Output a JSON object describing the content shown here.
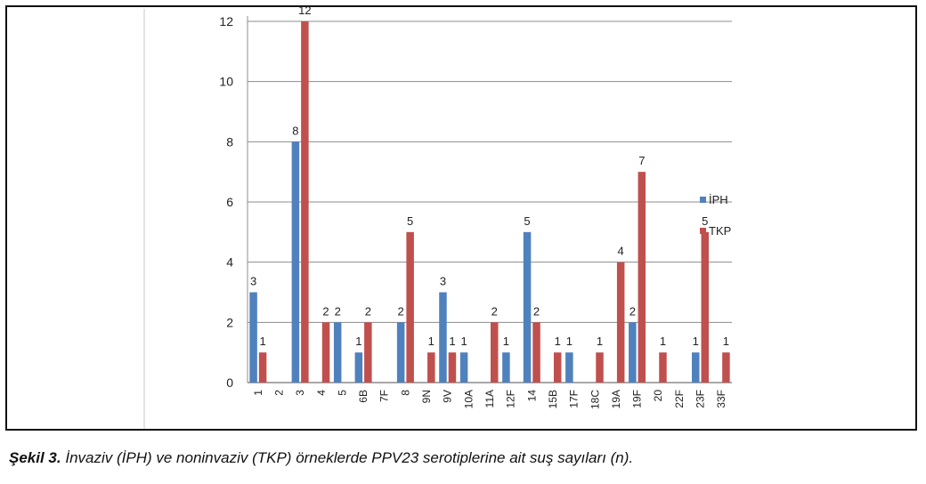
{
  "figure_label": "Şekil 3.",
  "caption_text": "İnvaziv (İPH) ve noninvaziv (TKP) örneklerde PPV23 serotiplerine ait suş sayıları (n).",
  "colors": {
    "iph": "#4f81bd",
    "tkp": "#c0504d",
    "grid": "#8c8c8c",
    "text": "#222222"
  },
  "chart_data": {
    "type": "bar",
    "title": "",
    "xlabel": "",
    "ylabel": "",
    "ylim": [
      0,
      12
    ],
    "yticks": [
      0,
      2,
      4,
      6,
      8,
      10,
      12
    ],
    "grid": true,
    "legend_position": "right",
    "categories": [
      "1",
      "2",
      "3",
      "4",
      "5",
      "6B",
      "7F",
      "8",
      "9N",
      "9V",
      "10A",
      "11A",
      "12F",
      "14",
      "15B",
      "17F",
      "18C",
      "19A",
      "19F",
      "20",
      "22F",
      "23F",
      "33F"
    ],
    "series": [
      {
        "name": "İPH",
        "values": [
          3,
          null,
          8,
          null,
          2,
          1,
          null,
          2,
          null,
          3,
          1,
          null,
          1,
          5,
          null,
          1,
          null,
          null,
          2,
          null,
          null,
          1,
          null
        ]
      },
      {
        "name": "TKP",
        "values": [
          1,
          null,
          12,
          2,
          null,
          2,
          null,
          5,
          1,
          1,
          null,
          2,
          null,
          2,
          1,
          null,
          1,
          4,
          7,
          1,
          null,
          5,
          1
        ]
      }
    ]
  }
}
